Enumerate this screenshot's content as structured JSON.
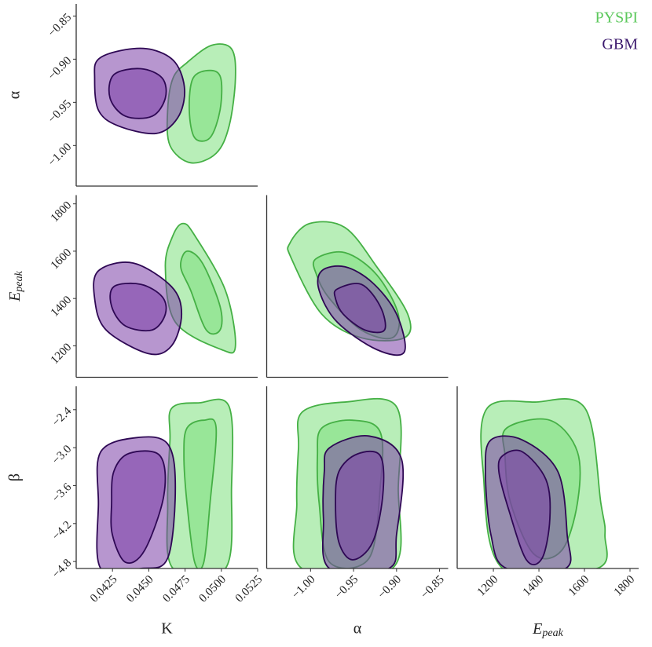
{
  "chart_data": {
    "type": "corner",
    "legend": "upper right",
    "series": [
      {
        "name": "PYSPI",
        "color": "#5cc85c",
        "fill": "#7ee07e",
        "edgecolor": "#45b045"
      },
      {
        "name": "GBM",
        "color": "#3c1a6e",
        "fill": "#7b3fa8",
        "edgecolor": "#2e0854"
      }
    ],
    "rows": [
      [
        {
          "xlim": [
            0.04,
            0.0525
          ],
          "ylim": [
            -1.047,
            -0.836
          ],
          "yticks": [
            {
              "value": -0.85,
              "label": "−0.85"
            },
            {
              "value": -0.9,
              "label": "−0.90"
            },
            {
              "value": -0.95,
              "label": "−0.95"
            },
            {
              "value": -1.0,
              "label": "−1.00"
            }
          ],
          "ylabel": "α",
          "contours": [
            [
              {
                "x": [
                  0.04763,
                  0.04932,
                  0.0507,
                  0.05097,
                  0.05054,
                  0.04964,
                  0.04789,
                  0.04646,
                  0.0463,
                  0.04667
                ],
                "y": [
                  -0.904,
                  -0.884,
                  -0.888,
                  -0.922,
                  -0.977,
                  -1.009,
                  -1.02,
                  -1.0,
                  -0.959,
                  -0.922
                ]
              },
              {
                "x": [
                  0.04805,
                  0.04922,
                  0.04996,
                  0.04991,
                  0.04922,
                  0.04816,
                  0.04779
                ],
                "y": [
                  -0.922,
                  -0.913,
                  -0.922,
                  -0.959,
                  -0.991,
                  -0.991,
                  -0.959
                ]
              }
            ],
            [
              {
                "x": [
                  0.04153,
                  0.04339,
                  0.04524,
                  0.04683,
                  0.04747,
                  0.04699,
                  0.04551,
                  0.04286,
                  0.04153,
                  0.04127
                ],
                "y": [
                  -0.9,
                  -0.889,
                  -0.889,
                  -0.904,
                  -0.936,
                  -0.968,
                  -0.986,
                  -0.977,
                  -0.959,
                  -0.922
                ]
              },
              {
                "x": [
                  0.04259,
                  0.04445,
                  0.04593,
                  0.04614,
                  0.04524,
                  0.04339,
                  0.04233
                ],
                "y": [
                  -0.918,
                  -0.911,
                  -0.922,
                  -0.945,
                  -0.966,
                  -0.966,
                  -0.945
                ]
              }
            ]
          ]
        }
      ],
      [
        {
          "xlim": [
            0.04,
            0.0525
          ],
          "ylim": [
            1067,
            1837
          ],
          "yticks": [
            1200,
            1400,
            1600,
            1800
          ],
          "ylabel": {
            "main": "E",
            "sub": "peak"
          },
          "contours": [
            [
              {
                "x": [
                  0.04667,
                  0.04736,
                  0.04816,
                  0.05028,
                  0.05097,
                  0.05001,
                  0.04683,
                  0.04614
                ],
                "y": [
                  1667,
                  1717,
                  1667,
                  1434,
                  1200,
                  1184,
                  1300,
                  1534
                ]
              },
              {
                "x": [
                  0.04763,
                  0.04869,
                  0.04991,
                  0.04991,
                  0.04896,
                  0.04789,
                  0.0472
                ],
                "y": [
                  1600,
                  1550,
                  1367,
                  1267,
                  1267,
                  1434,
                  1534
                ]
              }
            ],
            [
              {
                "x": [
                  0.04153,
                  0.04392,
                  0.04657,
                  0.04726,
                  0.04657,
                  0.04498,
                  0.04206,
                  0.04127
                ],
                "y": [
                  1517,
                  1550,
                  1450,
                  1334,
                  1200,
                  1167,
                  1267,
                  1400
                ]
              },
              {
                "x": [
                  0.04259,
                  0.04445,
                  0.04593,
                  0.04614,
                  0.04524,
                  0.04339,
                  0.04244
                ],
                "y": [
                  1450,
                  1460,
                  1407,
                  1334,
                  1267,
                  1284,
                  1367
                ]
              }
            ]
          ]
        },
        {
          "xlim": [
            -1.051,
            -0.84
          ],
          "ylim": [
            1067,
            1837
          ],
          "contours": [
            [
              {
                "x": [
                  -1.024,
                  -1.001,
                  -0.96,
                  -0.923,
                  -0.887,
                  -0.891,
                  -0.941,
                  -0.987,
                  -1.022
                ],
                "y": [
                  1634,
                  1717,
                  1700,
                  1534,
                  1334,
                  1234,
                  1234,
                  1334,
                  1567
                ]
              },
              {
                "x": [
                  -0.994,
                  -0.96,
                  -0.923,
                  -0.898,
                  -0.905,
                  -0.941,
                  -0.978,
                  -0.993
                ],
                "y": [
                  1567,
                  1594,
                  1500,
                  1334,
                  1234,
                  1267,
                  1400,
                  1500
                ]
              }
            ],
            [
              {
                "x": [
                  -0.987,
                  -0.96,
                  -0.928,
                  -0.9,
                  -0.891,
                  -0.923,
                  -0.969,
                  -0.99
                ],
                "y": [
                  1517,
                  1534,
                  1467,
                  1334,
                  1174,
                  1184,
                  1300,
                  1434
                ]
              },
              {
                "x": [
                  -0.969,
                  -0.941,
                  -0.919,
                  -0.914,
                  -0.937,
                  -0.962,
                  -0.971
                ],
                "y": [
                  1440,
                  1460,
                  1367,
                  1267,
                  1267,
                  1334,
                  1400
                ]
              }
            ]
          ]
        }
      ],
      [
        {
          "xlim": [
            0.04,
            0.0525
          ],
          "ylim": [
            -4.91,
            -2.03
          ],
          "xticks": [
            0.0425,
            {
              "value": 0.045,
              "label": "0.0450"
            },
            0.0475,
            {
              "value": 0.05,
              "label": "0.0500"
            },
            0.0525
          ],
          "yticks": [
            {
              "value": -2.4,
              "label": "−2.4"
            },
            {
              "value": -3.0,
              "label": "−3.0"
            },
            {
              "value": -3.6,
              "label": "−3.6"
            },
            {
              "value": -4.2,
              "label": "−4.2"
            },
            {
              "value": -4.8,
              "label": "−4.8"
            }
          ],
          "xlabel": "K",
          "ylabel": "β",
          "contours": [
            [
              {
                "x": [
                  0.04657,
                  0.04842,
                  0.05054,
                  0.0507,
                  0.05028,
                  0.04667,
                  0.0463,
                  0.04646
                ],
                "y": [
                  -2.379,
                  -2.292,
                  -2.354,
                  -3.626,
                  -4.91,
                  -4.91,
                  -3.876,
                  -2.878
                ]
              },
              {
                "x": [
                  0.04763,
                  0.04879,
                  0.04964,
                  0.04922,
                  0.04879,
                  0.04816,
                  0.04763,
                  0.04742
                ],
                "y": [
                  -2.691,
                  -2.566,
                  -2.691,
                  -3.876,
                  -4.811,
                  -4.811,
                  -3.876,
                  -3.127
                ]
              }
            ],
            [
              {
                "x": [
                  0.04169,
                  0.04418,
                  0.0463,
                  0.04683,
                  0.0463,
                  0.04445,
                  0.04169,
                  0.04153
                ],
                "y": [
                  -3.065,
                  -2.841,
                  -2.94,
                  -3.626,
                  -4.748,
                  -4.91,
                  -4.91,
                  -3.876
                ]
              },
              {
                "x": [
                  0.04259,
                  0.04365,
                  0.04577,
                  0.04604,
                  0.04471,
                  0.04339,
                  0.04249,
                  0.04244
                ],
                "y": [
                  -3.377,
                  -3.09,
                  -3.127,
                  -3.751,
                  -4.624,
                  -4.811,
                  -4.374,
                  -3.876
                ]
              }
            ]
          ]
        },
        {
          "xlim": [
            -1.051,
            -0.84
          ],
          "ylim": [
            -4.91,
            -2.03
          ],
          "xticks": [
            {
              "value": -1.0,
              "label": "−1.00"
            },
            {
              "value": -0.95,
              "label": "−0.95"
            },
            {
              "value": -0.9,
              "label": "−0.90"
            },
            {
              "value": -0.85,
              "label": "−0.85"
            }
          ],
          "xlabel": "α",
          "contours": [
            [
              {
                "x": [
                  -1.01,
                  -0.96,
                  -0.9,
                  -0.898,
                  -0.905,
                  -1.01,
                  -1.016,
                  -1.014
                ],
                "y": [
                  -2.441,
                  -2.279,
                  -2.354,
                  -3.626,
                  -4.91,
                  -4.91,
                  -3.876,
                  -3.003
                ]
              },
              {
                "x": [
                  -0.987,
                  -0.951,
                  -0.919,
                  -0.919,
                  -0.932,
                  -0.978,
                  -0.99,
                  -0.992
                ],
                "y": [
                  -2.691,
                  -2.566,
                  -2.753,
                  -3.626,
                  -4.748,
                  -4.811,
                  -3.876,
                  -3.127
                ]
              }
            ],
            [
              {
                "x": [
                  -0.978,
                  -0.932,
                  -0.894,
                  -0.9,
                  -0.909,
                  -0.978,
                  -0.985,
                  -0.984
                ],
                "y": [
                  -3.003,
                  -2.816,
                  -3.19,
                  -4.374,
                  -4.91,
                  -4.91,
                  -4.125,
                  -3.377
                ]
              },
              {
                "x": [
                  -0.967,
                  -0.946,
                  -0.919,
                  -0.916,
                  -0.928,
                  -0.951,
                  -0.967,
                  -0.971
                ],
                "y": [
                  -3.377,
                  -3.102,
                  -3.127,
                  -3.751,
                  -4.499,
                  -4.773,
                  -4.499,
                  -3.876
                ]
              }
            ]
          ]
        },
        {
          "xlim": [
            1041,
            1838
          ],
          "ylim": [
            -4.91,
            -2.03
          ],
          "xticks": [
            1200,
            1400,
            1600,
            1800
          ],
          "xlabel": {
            "main": "E",
            "sub": "peak"
          },
          "contours": [
            [
              {
                "x": [
                  1172,
                  1379,
                  1603,
                  1672,
                  1690,
                  1655,
                  1241,
                  1155
                ],
                "y": [
                  -2.379,
                  -2.279,
                  -2.379,
                  -3.876,
                  -4.374,
                  -4.91,
                  -4.91,
                  -3.377
                ]
              },
              {
                "x": [
                  1258,
                  1448,
                  1569,
                  1569,
                  1500,
                  1379,
                  1276,
                  1251
                ],
                "y": [
                  -2.691,
                  -2.566,
                  -3.065,
                  -3.876,
                  -4.624,
                  -4.686,
                  -3.876,
                  -3.127
                ]
              }
            ],
            [
              {
                "x": [
                  1189,
                  1327,
                  1483,
                  1524,
                  1517,
                  1258,
                  1189,
                  1165
                ],
                "y": [
                  -2.878,
                  -2.878,
                  -3.377,
                  -4.374,
                  -4.91,
                  -4.91,
                  -4.374,
                  -3.377
                ]
              },
              {
                "x": [
                  1241,
                  1327,
                  1431,
                  1448,
                  1414,
                  1345,
                  1269,
                  1224
                ],
                "y": [
                  -3.127,
                  -3.065,
                  -3.506,
                  -4.125,
                  -4.748,
                  -4.773,
                  -4.001,
                  -3.377
                ]
              }
            ]
          ]
        }
      ]
    ]
  }
}
